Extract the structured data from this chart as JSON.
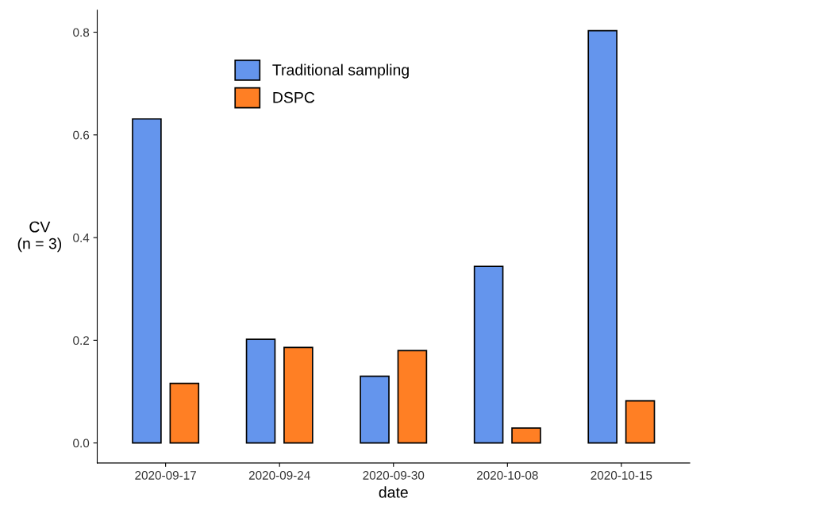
{
  "chart_data": {
    "type": "bar",
    "xlabel": "date",
    "ylabel": "CV\n(n = 3)",
    "categories": [
      "2020-09-17",
      "2020-09-24",
      "2020-09-30",
      "2020-10-08",
      "2020-10-15"
    ],
    "series": [
      {
        "name": "Traditional sampling",
        "color": "#6495ed",
        "values": [
          0.631,
          0.202,
          0.13,
          0.344,
          0.803
        ]
      },
      {
        "name": "DSPC",
        "color": "#ff7f24",
        "values": [
          0.116,
          0.186,
          0.18,
          0.029,
          0.082
        ]
      }
    ],
    "ylim": [
      -0.039,
      0.843
    ],
    "yticks": [
      {
        "value": 0,
        "label": "0.0"
      },
      {
        "value": 0.2,
        "label": "0.2"
      },
      {
        "value": 0.4,
        "label": "0.4"
      },
      {
        "value": 0.6,
        "label": "0.6"
      },
      {
        "value": 0.8,
        "label": "0.8"
      }
    ],
    "grid": false,
    "legend": "top"
  }
}
